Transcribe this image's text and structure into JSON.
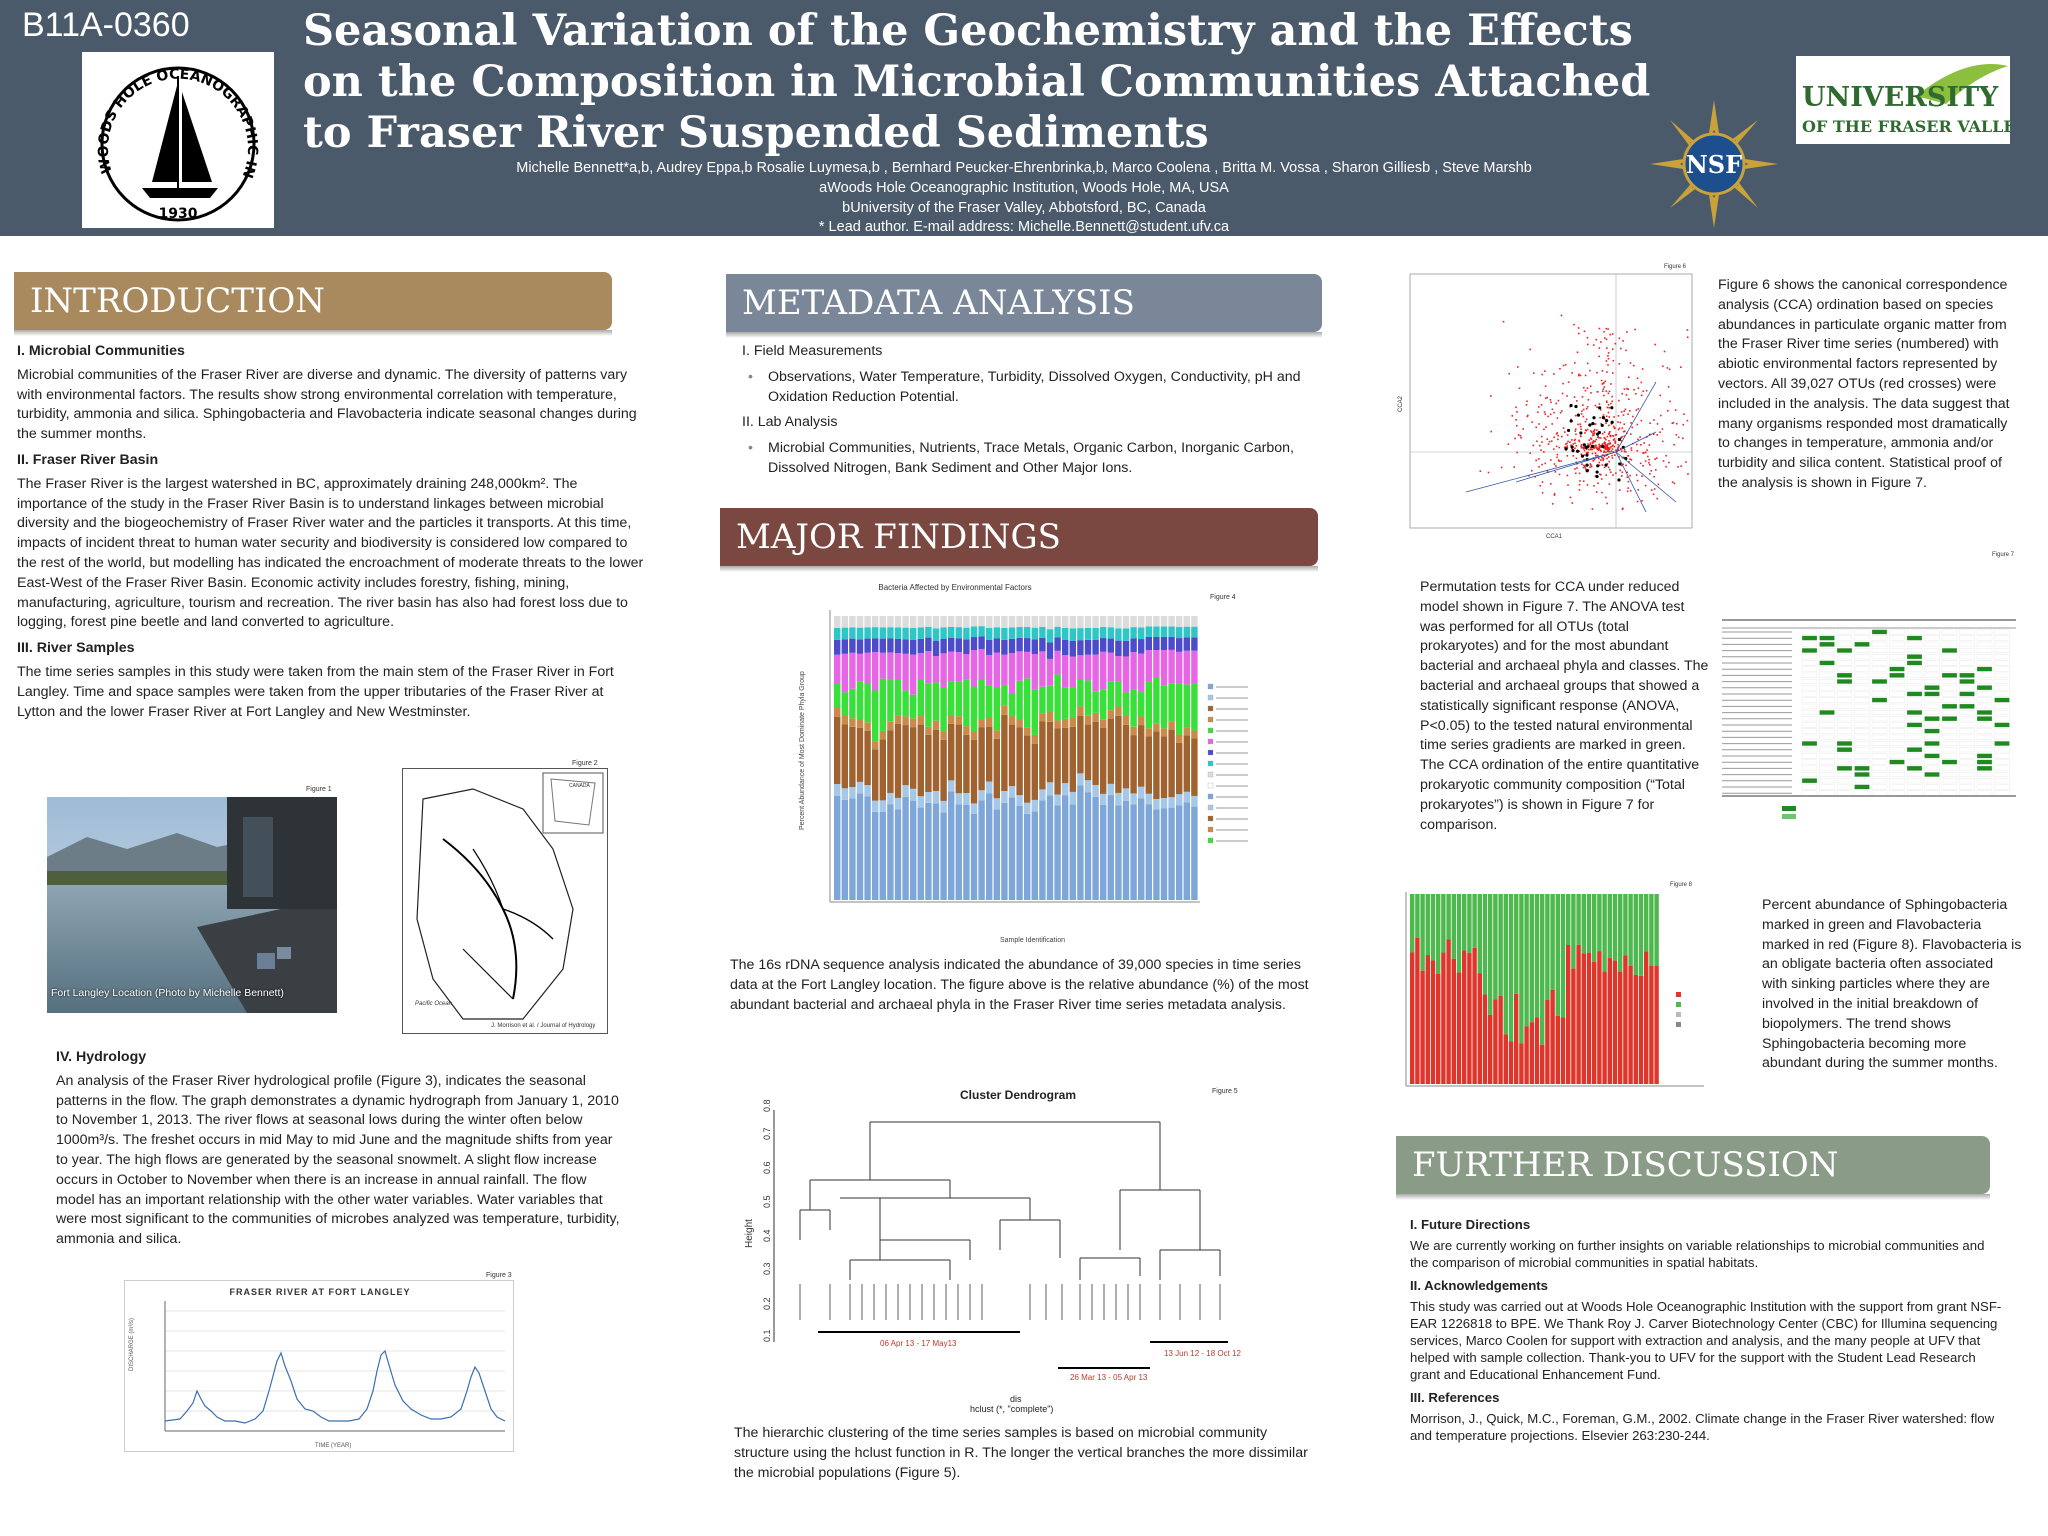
{
  "header": {
    "poster_id": "B11A-0360",
    "title": "Seasonal Variation of the Geochemistry and the Effects on the Composition in Microbial Communities Attached to Fraser River Suspended Sediments",
    "authors": "Michelle Bennett*a,b, Audrey Eppa,b Rosalie Luymesa,b , Bernhard Peucker-Ehrenbrinka,b, Marco Coolena , Britta M. Vossa , Sharon Gilliesb , Steve Marshb",
    "affil_a": "aWoods Hole Oceanographic Institution, Woods Hole, MA, USA",
    "affil_b": "bUniversity of the Fraser Valley, Abbotsford, BC, Canada",
    "lead": "* Lead author. E-mail address: Michelle.Bennett@student.ufv.ca",
    "whoi_text": "WOODS HOLE OCEANOGRAPHIC INSTITUTION",
    "whoi_year": "1930",
    "ufv_line1": "UNIVERSITY",
    "ufv_line2": "OF THE FRASER VALLEY",
    "nsf": "NSF"
  },
  "intro": {
    "banner": "INTRODUCTION",
    "h1": "I. Microbial Communities",
    "p1": "Microbial communities of the Fraser River are diverse and dynamic. The diversity of patterns vary with environmental factors. The results show strong environmental correlation with temperature, turbidity, ammonia and silica. Sphingobacteria and Flavobacteria indicate seasonal changes during the summer months.",
    "h2": "II. Fraser River Basin",
    "p2": "The Fraser River is the largest watershed in BC, approximately draining 248,000km². The importance of the study in the Fraser River Basin is to understand linkages between microbial diversity and the biogeochemistry of Fraser River water and the particles it transports.  At this time, impacts of incident threat to human water security and biodiversity is considered low compared to the rest of the world, but modelling has indicated the encroachment of moderate threats to the lower East-West of the Fraser River Basin. Economic activity includes forestry, fishing, mining, manufacturing, agriculture, tourism and recreation.  The river basin has also had forest loss due to logging, forest pine beetle and land converted to agriculture.",
    "h3": "III. River Samples",
    "p3": "The time series samples in this study were taken from the main stem of the Fraser River in Fort Langley.  Time and space samples were taken from the upper tributaries of the Fraser River at Lytton and the lower Fraser River at Fort Langley and New Westminster.",
    "fig1_label": "Figure 1",
    "fig1_caption": "Fort Langley Location (Photo by Michelle Bennett)",
    "fig2_label": "Figure 2",
    "fig2_credit": "J. Morrison et al. / Journal of Hydrology",
    "fig2_canada": "CANADA",
    "fig2_pacific": "Pacific Ocean",
    "h4": "IV. Hydrology",
    "p4": "An analysis of the Fraser River hydrological profile (Figure 3), indicates the seasonal patterns in the flow. The graph demonstrates a dynamic hydrograph from January 1, 2010 to November 1, 2013. The river flows at seasonal lows during the winter often below 1000m³/s. The freshet occurs in mid May to mid June and the magnitude shifts from year to year. The high flows are generated by the seasonal snowmelt. A slight flow increase occurs in October to November when there is an increase in annual rainfall. The flow model has an important relationship with the other water variables. Water variables that were most significant to the communities of microbes analyzed was temperature, turbidity, ammonia and silica.",
    "fig3_label": "Figure 3",
    "fig3_title": "FRASER RIVER AT FORT LANGLEY",
    "fig3_ylabel": "DISCHARGE (m³/s)",
    "fig3_xlabel": "TIME (YEAR)"
  },
  "meta": {
    "banner": "METADATA ANALYSIS",
    "h1": "I. Field Measurements",
    "b1": "Observations, Water Temperature, Turbidity, Dissolved Oxygen, Conductivity, pH and Oxidation Reduction Potential.",
    "h2": "II. Lab Analysis",
    "b2": "Microbial Communities, Nutrients, Trace Metals, Organic Carbon, Inorganic Carbon, Dissolved Nitrogen, Bank Sediment and Other Major Ions."
  },
  "major": {
    "banner": "MAJOR FINDINGS",
    "fig4_label": "Figure 4",
    "fig4_title": "Bacteria Affected by Environmental Factors",
    "fig4_ylabel": "Percent Abundance of Most Dominate Phyla Group",
    "fig4_xlabel": "Sample Identification",
    "fig4_text": "The 16s rDNA sequence analysis indicated the abundance of 39,000 species in time series data at the Fort Langley location. The figure above is the relative abundance (%) of the most abundant bacterial and archaeal phyla in the Fraser River time series metadata analysis.",
    "fig5_label": "Figure 5",
    "fig5_title": "Cluster Dendrogram",
    "fig5_ylabel": "Height",
    "fig5_xlabel1": "dis",
    "fig5_xlabel2": "hclust (*, \"complete\")",
    "fig5_g1": "06 Apr 13 - 17 May13",
    "fig5_g2": "26 Mar 13 - 05 Apr 13",
    "fig5_g3": "13 Jun 12 - 18 Oct 12",
    "fig5_text": "The hierarchic clustering of the time series samples is based on microbial community structure using the hclust function in R. The longer the vertical branches the more dissimilar the microbial populations (Figure 5)."
  },
  "right": {
    "fig6_label": "Figure 6",
    "fig6_xlabel": "CCA1",
    "fig6_ylabel": "CCA2",
    "fig6_text": "Figure 6 shows the canonical correspondence analysis (CCA) ordination based on species abundances in particulate organic matter from the Fraser River time series (numbered) with abiotic environmental factors represented by vectors. All 39,027 OTUs (red crosses) were included in the analysis. The data suggest that many organisms responded most dramatically to changes in temperature, ammonia and/or turbidity and silica content. Statistical proof of the analysis is shown in Figure 7.",
    "fig7_label": "Figure 7",
    "fig7_text": "Permutation tests for CCA under reduced model shown in Figure 7. The ANOVA test was performed for all OTUs (total prokaryotes) and for the most abundant bacterial and archaeal phyla and classes. The bacterial and archaeal groups that showed a statistically significant response (ANOVA, P<0.05) to the tested natural environmental time series gradients are marked in green. The CCA ordination of the entire quantitative prokaryotic community composition (“Total prokaryotes”) is shown in Figure 7 for comparison.",
    "fig8_label": "Figure 8",
    "fig8_text": "Percent abundance of Sphingobacteria marked in green and Flavobacteria marked in red (Figure 8). Flavobacteria is an obligate bacteria often associated with sinking particles where they are involved in the initial breakdown of biopolymers. The trend shows Sphingobacteria becoming more abundant during the summer months.",
    "disc_banner": "FURTHER DISCUSSION",
    "d_h1": "I. Future Directions",
    "d_p1": "We are currently working on further insights on variable relationships to microbial communities and the comparison of microbial communities in spatial habitats.",
    "d_h2": "II. Acknowledgements",
    "d_p2": "This study was carried out at Woods Hole Oceanographic Institution with the support from grant NSF-EAR 1226818 to BPE. We Thank Roy J. Carver Biotechnology Center (CBC) for Illumina sequencing services, Marco Coolen for support with extraction and analysis, and the many people at UFV that helped with sample collection. Thank-you to UFV for the support with the Student Lead Research grant and Educational Enhancement Fund.",
    "d_h3": "III. References",
    "d_p3": "Morrison, J., Quick, M.C., Foreman, G.M., 2002. Climate change in the Fraser River watershed: flow and temperature projections. Elsevier 263:230-244."
  },
  "colors": {
    "header": "#4b5a6b",
    "intro": "#a98a5e",
    "meta": "#7a8799",
    "major": "#7a4741",
    "disc": "#8a9c88"
  }
}
